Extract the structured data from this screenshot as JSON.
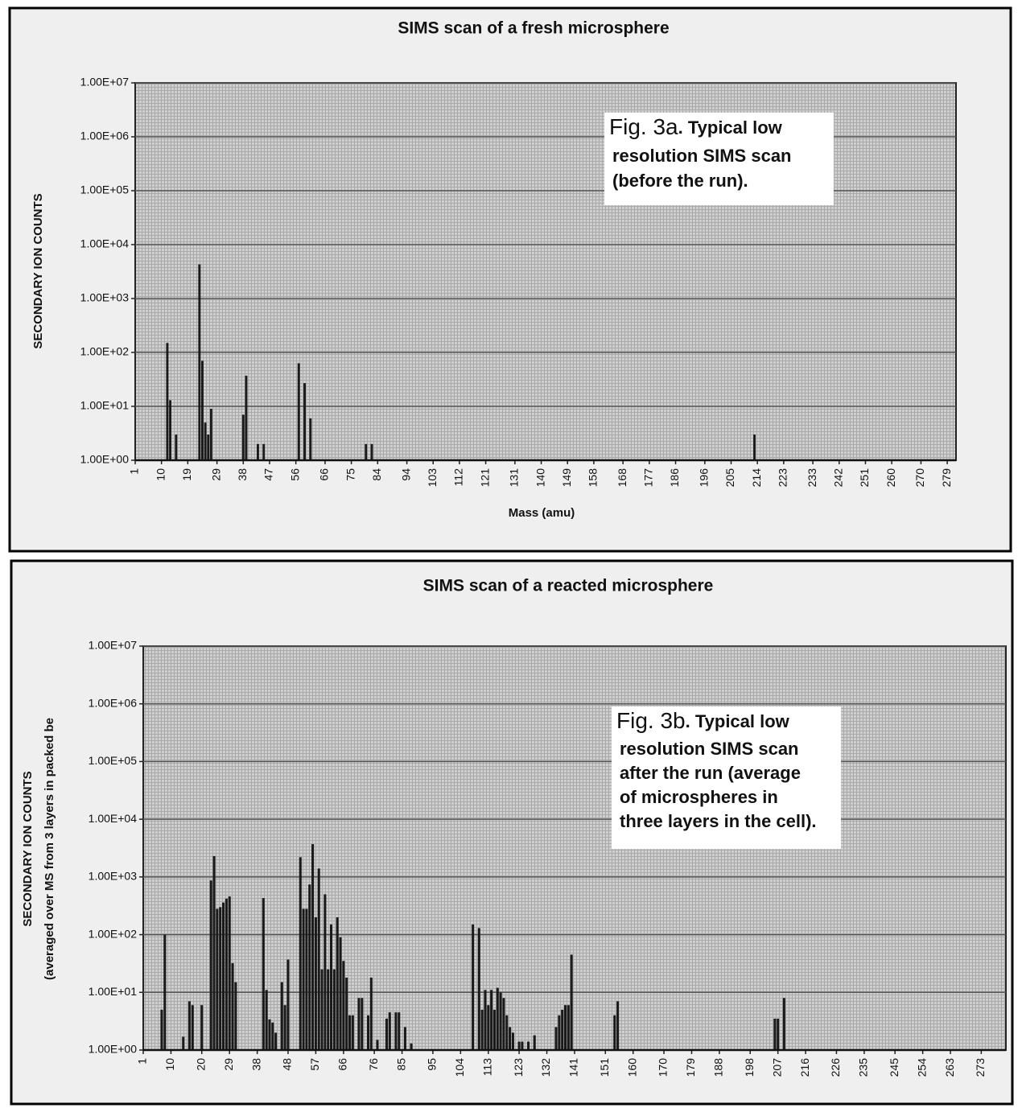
{
  "chart_data": [
    {
      "type": "bar",
      "title": "SIMS scan of a fresh microsphere",
      "xlabel": "Mass (amu)",
      "ylabel": [
        "SECONDARY ION COUNTS"
      ],
      "annotation": {
        "lead": "Fig. 3a",
        "lines": [
          ". Typical low",
          "resolution SIMS scan",
          "(before the run)."
        ]
      },
      "yscale": "log",
      "grid": true,
      "color": "#1a1a1a",
      "x": [
        12,
        13,
        15,
        23,
        24,
        25,
        26,
        27,
        38,
        39,
        43,
        45,
        57,
        59,
        61,
        80,
        82,
        213
      ],
      "values": [
        150,
        13,
        3,
        4300,
        70,
        5,
        3,
        9,
        7,
        37,
        2,
        2,
        63,
        27,
        6,
        2,
        2,
        3
      ],
      "xlim": [
        1,
        282
      ],
      "xticks": [
        1,
        10,
        19,
        29,
        38,
        47,
        56,
        66,
        75,
        84,
        94,
        103,
        112,
        121,
        131,
        140,
        149,
        158,
        168,
        177,
        186,
        196,
        205,
        214,
        223,
        233,
        242,
        251,
        260,
        270,
        279
      ],
      "ylim": [
        1,
        10000000
      ],
      "yticks": [
        {
          "value": 1,
          "label": "1.00E+00"
        },
        {
          "value": 10,
          "label": "1.00E+01"
        },
        {
          "value": 100,
          "label": "1.00E+02"
        },
        {
          "value": 1000,
          "label": "1.00E+03"
        },
        {
          "value": 10000,
          "label": "1.00E+04"
        },
        {
          "value": 100000,
          "label": "1.00E+05"
        },
        {
          "value": 1000000,
          "label": "1.00E+06"
        },
        {
          "value": 10000000,
          "label": "1.00E+07"
        }
      ]
    },
    {
      "type": "bar",
      "title": "SIMS scan of a reacted microsphere",
      "xlabel": "Mass (amu)",
      "ylabel": [
        "SECONDARY ION COUNTS",
        "(averaged over MS from 3 layers in packed be"
      ],
      "annotation": {
        "lead": "Fig. 3b",
        "lines": [
          ". Typical low",
          "resolution SIMS scan",
          "after the run (average",
          "of  microspheres in",
          "three layers in the cell)."
        ]
      },
      "yscale": "log",
      "grid": true,
      "color": "#1a1a1a",
      "x": [
        7,
        8,
        14,
        16,
        17,
        20,
        23,
        24,
        25,
        26,
        27,
        28,
        29,
        30,
        31,
        40,
        41,
        42,
        43,
        44,
        46,
        47,
        48,
        52,
        53,
        54,
        55,
        56,
        57,
        58,
        59,
        60,
        61,
        62,
        63,
        64,
        65,
        66,
        67,
        68,
        69,
        71,
        72,
        74,
        75,
        77,
        80,
        81,
        83,
        84,
        86,
        88,
        108,
        110,
        111,
        112,
        113,
        114,
        115,
        116,
        117,
        118,
        119,
        120,
        121,
        123,
        124,
        126,
        128,
        135,
        136,
        137,
        138,
        139,
        140,
        154,
        155,
        206,
        207,
        209
      ],
      "values": [
        5,
        100,
        1.7,
        7,
        6,
        6,
        870,
        2300,
        280,
        300,
        360,
        420,
        460,
        32,
        15,
        430,
        11,
        3.4,
        3,
        2,
        15,
        6,
        37,
        2200,
        280,
        280,
        740,
        3700,
        200,
        1400,
        25,
        500,
        25,
        150,
        25,
        200,
        90,
        35,
        18,
        4,
        4,
        8,
        8,
        4,
        18,
        1.5,
        3.5,
        4.5,
        4.5,
        4.5,
        2.5,
        1.3,
        150,
        130,
        5,
        11,
        6,
        11,
        5,
        12,
        10,
        8,
        4,
        2.5,
        2,
        1.4,
        1.4,
        1.4,
        1.8,
        2.5,
        4,
        5,
        6,
        6,
        45,
        4,
        7,
        3.5,
        3.5,
        8
      ],
      "xlim": [
        1,
        281
      ],
      "xticks": [
        1,
        10,
        20,
        29,
        38,
        48,
        57,
        66,
        76,
        85,
        95,
        104,
        113,
        123,
        132,
        141,
        151,
        160,
        170,
        179,
        188,
        198,
        207,
        216,
        226,
        235,
        245,
        254,
        263,
        273
      ],
      "ylim": [
        1,
        10000000
      ],
      "yticks": [
        {
          "value": 1,
          "label": "1.00E+00"
        },
        {
          "value": 10,
          "label": "1.00E+01"
        },
        {
          "value": 100,
          "label": "1.00E+02"
        },
        {
          "value": 1000,
          "label": "1.00E+03"
        },
        {
          "value": 10000,
          "label": "1.00E+04"
        },
        {
          "value": 100000,
          "label": "1.00E+05"
        },
        {
          "value": 1000000,
          "label": "1.00E+06"
        },
        {
          "value": 10000000,
          "label": "1.00E+07"
        }
      ]
    }
  ]
}
